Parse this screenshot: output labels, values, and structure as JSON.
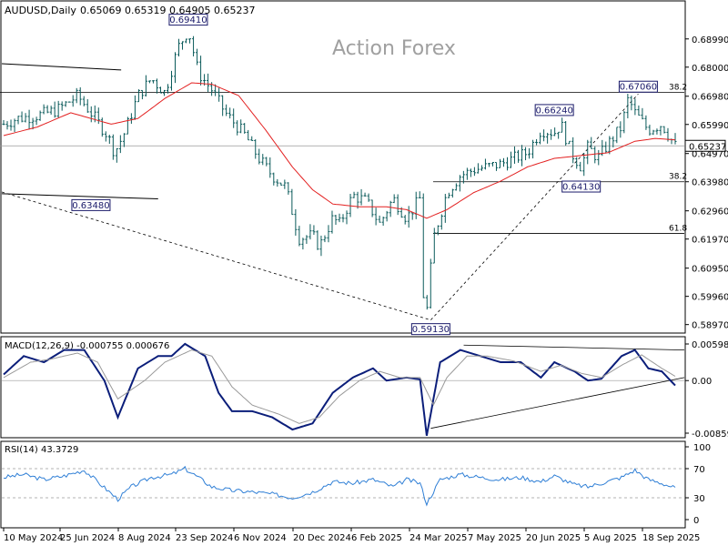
{
  "header": {
    "symbol_line": "AUDUSD,Daily",
    "ohlc": "0.65069 0.65319 0.64905 0.65237",
    "watermark": "Action Forex"
  },
  "colors": {
    "candle": "#0a5a5a",
    "ma": "#e32020",
    "macd": "#0b1e7a",
    "signal": "#9a9a9a",
    "rsi": "#2f7fd6",
    "grid_line": "#000000"
  },
  "chart_data": [
    {
      "type": "candlestick",
      "panel": "price",
      "title": "AUDUSD,Daily",
      "x_labels": [
        "10 May 2024",
        "25 Jun 2024",
        "8 Aug 2024",
        "23 Sep 2024",
        "6 Nov 2024",
        "20 Dec 2024",
        "6 Feb 2025",
        "24 Mar 2025",
        "7 May 2025",
        "20 Jun 2025",
        "5 Aug 2025",
        "18 Sep 2025"
      ],
      "y_ticks": [
        "0.68990",
        "0.68000",
        "0.66980",
        "0.65990",
        "0.64970",
        "0.63980",
        "0.62960",
        "0.61970",
        "0.60950",
        "0.59960",
        "0.58970"
      ],
      "ylim": [
        0.588,
        0.701
      ],
      "current_price": "0.65237",
      "close_path": [
        {
          "t": 0,
          "v": 0.66
        },
        {
          "t": 0.02,
          "v": 0.662
        },
        {
          "t": 0.05,
          "v": 0.663
        },
        {
          "t": 0.08,
          "v": 0.665
        },
        {
          "t": 0.11,
          "v": 0.67
        },
        {
          "t": 0.13,
          "v": 0.664
        },
        {
          "t": 0.155,
          "v": 0.656
        },
        {
          "t": 0.165,
          "v": 0.65
        },
        {
          "t": 0.18,
          "v": 0.657
        },
        {
          "t": 0.2,
          "v": 0.67
        },
        {
          "t": 0.22,
          "v": 0.676
        },
        {
          "t": 0.24,
          "v": 0.671
        },
        {
          "t": 0.26,
          "v": 0.687
        },
        {
          "t": 0.275,
          "v": 0.693
        },
        {
          "t": 0.29,
          "v": 0.678
        },
        {
          "t": 0.31,
          "v": 0.672
        },
        {
          "t": 0.33,
          "v": 0.664
        },
        {
          "t": 0.36,
          "v": 0.656
        },
        {
          "t": 0.38,
          "v": 0.648
        },
        {
          "t": 0.4,
          "v": 0.642
        },
        {
          "t": 0.42,
          "v": 0.638
        },
        {
          "t": 0.44,
          "v": 0.62
        },
        {
          "t": 0.46,
          "v": 0.621
        },
        {
          "t": 0.47,
          "v": 0.617
        },
        {
          "t": 0.49,
          "v": 0.627
        },
        {
          "t": 0.5,
          "v": 0.625
        },
        {
          "t": 0.52,
          "v": 0.635
        },
        {
          "t": 0.54,
          "v": 0.633
        },
        {
          "t": 0.56,
          "v": 0.625
        },
        {
          "t": 0.58,
          "v": 0.634
        },
        {
          "t": 0.6,
          "v": 0.627
        },
        {
          "t": 0.62,
          "v": 0.634
        },
        {
          "t": 0.625,
          "v": 0.6
        },
        {
          "t": 0.63,
          "v": 0.594
        },
        {
          "t": 0.64,
          "v": 0.62
        },
        {
          "t": 0.66,
          "v": 0.636
        },
        {
          "t": 0.68,
          "v": 0.642
        },
        {
          "t": 0.7,
          "v": 0.644
        },
        {
          "t": 0.72,
          "v": 0.645
        },
        {
          "t": 0.74,
          "v": 0.646
        },
        {
          "t": 0.76,
          "v": 0.648
        },
        {
          "t": 0.78,
          "v": 0.65
        },
        {
          "t": 0.8,
          "v": 0.658
        },
        {
          "t": 0.82,
          "v": 0.657
        },
        {
          "t": 0.83,
          "v": 0.66
        },
        {
          "t": 0.845,
          "v": 0.65
        },
        {
          "t": 0.86,
          "v": 0.645
        },
        {
          "t": 0.87,
          "v": 0.652
        },
        {
          "t": 0.885,
          "v": 0.648
        },
        {
          "t": 0.9,
          "v": 0.653
        },
        {
          "t": 0.92,
          "v": 0.659
        },
        {
          "t": 0.93,
          "v": 0.669
        },
        {
          "t": 0.94,
          "v": 0.664
        },
        {
          "t": 0.96,
          "v": 0.658
        },
        {
          "t": 0.98,
          "v": 0.66
        },
        {
          "t": 1.0,
          "v": 0.6524
        }
      ],
      "ma_path": [
        {
          "t": 0,
          "v": 0.656
        },
        {
          "t": 0.05,
          "v": 0.659
        },
        {
          "t": 0.1,
          "v": 0.664
        },
        {
          "t": 0.13,
          "v": 0.662
        },
        {
          "t": 0.16,
          "v": 0.66
        },
        {
          "t": 0.2,
          "v": 0.662
        },
        {
          "t": 0.24,
          "v": 0.669
        },
        {
          "t": 0.28,
          "v": 0.6745
        },
        {
          "t": 0.31,
          "v": 0.674
        },
        {
          "t": 0.35,
          "v": 0.67
        },
        {
          "t": 0.39,
          "v": 0.658
        },
        {
          "t": 0.43,
          "v": 0.645
        },
        {
          "t": 0.46,
          "v": 0.637
        },
        {
          "t": 0.49,
          "v": 0.632
        },
        {
          "t": 0.53,
          "v": 0.631
        },
        {
          "t": 0.57,
          "v": 0.631
        },
        {
          "t": 0.6,
          "v": 0.63
        },
        {
          "t": 0.63,
          "v": 0.627
        },
        {
          "t": 0.66,
          "v": 0.63
        },
        {
          "t": 0.7,
          "v": 0.636
        },
        {
          "t": 0.74,
          "v": 0.64
        },
        {
          "t": 0.78,
          "v": 0.645
        },
        {
          "t": 0.82,
          "v": 0.648
        },
        {
          "t": 0.86,
          "v": 0.649
        },
        {
          "t": 0.9,
          "v": 0.65
        },
        {
          "t": 0.94,
          "v": 0.654
        },
        {
          "t": 0.97,
          "v": 0.655
        },
        {
          "t": 1.0,
          "v": 0.6545
        }
      ],
      "annotations": [
        {
          "label": "0.69410",
          "value": 0.6941
        },
        {
          "label": "0.67060",
          "value": 0.6706
        },
        {
          "label": "0.66240",
          "value": 0.6624
        },
        {
          "label": "0.64130",
          "value": 0.6413
        },
        {
          "label": "0.63480",
          "value": 0.6348
        },
        {
          "label": "0.59130",
          "value": 0.5913
        }
      ],
      "fib_levels": [
        {
          "label": "38.2",
          "value": 0.6712
        },
        {
          "label": "38.2",
          "value": 0.6398
        },
        {
          "label": "61.8",
          "value": 0.6217
        }
      ],
      "horizontal_line": 0.6524
    },
    {
      "type": "line",
      "panel": "macd",
      "title": "MACD(12,26,9) -0.000755 0.000676",
      "y_ticks": [
        "0.005981",
        "0.00",
        "-0.00859"
      ],
      "ylim": [
        -0.00859,
        0.005981
      ],
      "series": [
        {
          "name": "MACD",
          "path": [
            {
              "t": 0,
              "v": 0.001
            },
            {
              "t": 0.03,
              "v": 0.004
            },
            {
              "t": 0.06,
              "v": 0.003
            },
            {
              "t": 0.09,
              "v": 0.005
            },
            {
              "t": 0.12,
              "v": 0.005
            },
            {
              "t": 0.15,
              "v": 0.0
            },
            {
              "t": 0.17,
              "v": -0.006
            },
            {
              "t": 0.2,
              "v": 0.002
            },
            {
              "t": 0.23,
              "v": 0.004
            },
            {
              "t": 0.25,
              "v": 0.004
            },
            {
              "t": 0.27,
              "v": 0.006
            },
            {
              "t": 0.3,
              "v": 0.004
            },
            {
              "t": 0.32,
              "v": -0.002
            },
            {
              "t": 0.34,
              "v": -0.005
            },
            {
              "t": 0.37,
              "v": -0.005
            },
            {
              "t": 0.4,
              "v": -0.006
            },
            {
              "t": 0.43,
              "v": -0.008
            },
            {
              "t": 0.46,
              "v": -0.007
            },
            {
              "t": 0.49,
              "v": -0.002
            },
            {
              "t": 0.52,
              "v": 0.0005
            },
            {
              "t": 0.55,
              "v": 0.002
            },
            {
              "t": 0.57,
              "v": 0.0
            },
            {
              "t": 0.6,
              "v": 0.0005
            },
            {
              "t": 0.62,
              "v": 0.0002
            },
            {
              "t": 0.63,
              "v": -0.009
            },
            {
              "t": 0.65,
              "v": 0.003
            },
            {
              "t": 0.68,
              "v": 0.005
            },
            {
              "t": 0.71,
              "v": 0.004
            },
            {
              "t": 0.74,
              "v": 0.003
            },
            {
              "t": 0.77,
              "v": 0.003
            },
            {
              "t": 0.8,
              "v": 0.0005
            },
            {
              "t": 0.82,
              "v": 0.003
            },
            {
              "t": 0.85,
              "v": 0.0015
            },
            {
              "t": 0.87,
              "v": 0.0
            },
            {
              "t": 0.89,
              "v": 0.0003
            },
            {
              "t": 0.92,
              "v": 0.004
            },
            {
              "t": 0.94,
              "v": 0.005
            },
            {
              "t": 0.96,
              "v": 0.002
            },
            {
              "t": 0.98,
              "v": 0.0015
            },
            {
              "t": 1.0,
              "v": -0.0008
            }
          ]
        },
        {
          "name": "Signal",
          "path": [
            {
              "t": 0,
              "v": 0.0005
            },
            {
              "t": 0.04,
              "v": 0.003
            },
            {
              "t": 0.07,
              "v": 0.0035
            },
            {
              "t": 0.11,
              "v": 0.0045
            },
            {
              "t": 0.14,
              "v": 0.003
            },
            {
              "t": 0.17,
              "v": -0.003
            },
            {
              "t": 0.21,
              "v": 0.0
            },
            {
              "t": 0.24,
              "v": 0.003
            },
            {
              "t": 0.28,
              "v": 0.005
            },
            {
              "t": 0.31,
              "v": 0.004
            },
            {
              "t": 0.34,
              "v": -0.001
            },
            {
              "t": 0.37,
              "v": -0.004
            },
            {
              "t": 0.41,
              "v": -0.0055
            },
            {
              "t": 0.44,
              "v": -0.007
            },
            {
              "t": 0.47,
              "v": -0.006
            },
            {
              "t": 0.5,
              "v": -0.0025
            },
            {
              "t": 0.53,
              "v": 0.0
            },
            {
              "t": 0.56,
              "v": 0.0015
            },
            {
              "t": 0.59,
              "v": 0.0005
            },
            {
              "t": 0.62,
              "v": 0.0005
            },
            {
              "t": 0.64,
              "v": -0.004
            },
            {
              "t": 0.66,
              "v": 0.0005
            },
            {
              "t": 0.69,
              "v": 0.004
            },
            {
              "t": 0.72,
              "v": 0.004
            },
            {
              "t": 0.76,
              "v": 0.0032
            },
            {
              "t": 0.8,
              "v": 0.0015
            },
            {
              "t": 0.83,
              "v": 0.0025
            },
            {
              "t": 0.86,
              "v": 0.0012
            },
            {
              "t": 0.89,
              "v": 0.0005
            },
            {
              "t": 0.92,
              "v": 0.0025
            },
            {
              "t": 0.95,
              "v": 0.0042
            },
            {
              "t": 0.98,
              "v": 0.002
            },
            {
              "t": 1.0,
              "v": 0.0007
            }
          ]
        }
      ]
    },
    {
      "type": "line",
      "panel": "rsi",
      "title": "RSI(14) 43.3729",
      "y_ticks": [
        "100",
        "70",
        "30",
        "0"
      ],
      "ylim": [
        0,
        100
      ],
      "levels": [
        70,
        30
      ],
      "series": [
        {
          "name": "RSI",
          "path": [
            {
              "t": 0,
              "v": 58
            },
            {
              "t": 0.03,
              "v": 62
            },
            {
              "t": 0.06,
              "v": 55
            },
            {
              "t": 0.09,
              "v": 60
            },
            {
              "t": 0.12,
              "v": 68
            },
            {
              "t": 0.14,
              "v": 52
            },
            {
              "t": 0.17,
              "v": 28
            },
            {
              "t": 0.19,
              "v": 45
            },
            {
              "t": 0.22,
              "v": 58
            },
            {
              "t": 0.25,
              "v": 62
            },
            {
              "t": 0.27,
              "v": 70
            },
            {
              "t": 0.29,
              "v": 58
            },
            {
              "t": 0.31,
              "v": 45
            },
            {
              "t": 0.34,
              "v": 40
            },
            {
              "t": 0.37,
              "v": 38
            },
            {
              "t": 0.4,
              "v": 35
            },
            {
              "t": 0.43,
              "v": 30
            },
            {
              "t": 0.46,
              "v": 38
            },
            {
              "t": 0.49,
              "v": 52
            },
            {
              "t": 0.52,
              "v": 50
            },
            {
              "t": 0.55,
              "v": 55
            },
            {
              "t": 0.58,
              "v": 45
            },
            {
              "t": 0.6,
              "v": 55
            },
            {
              "t": 0.62,
              "v": 50
            },
            {
              "t": 0.63,
              "v": 22
            },
            {
              "t": 0.65,
              "v": 55
            },
            {
              "t": 0.68,
              "v": 62
            },
            {
              "t": 0.71,
              "v": 58
            },
            {
              "t": 0.74,
              "v": 55
            },
            {
              "t": 0.77,
              "v": 58
            },
            {
              "t": 0.8,
              "v": 52
            },
            {
              "t": 0.82,
              "v": 60
            },
            {
              "t": 0.85,
              "v": 48
            },
            {
              "t": 0.87,
              "v": 45
            },
            {
              "t": 0.89,
              "v": 50
            },
            {
              "t": 0.92,
              "v": 58
            },
            {
              "t": 0.94,
              "v": 68
            },
            {
              "t": 0.96,
              "v": 55
            },
            {
              "t": 0.98,
              "v": 50
            },
            {
              "t": 1.0,
              "v": 43.37
            }
          ]
        }
      ]
    }
  ]
}
